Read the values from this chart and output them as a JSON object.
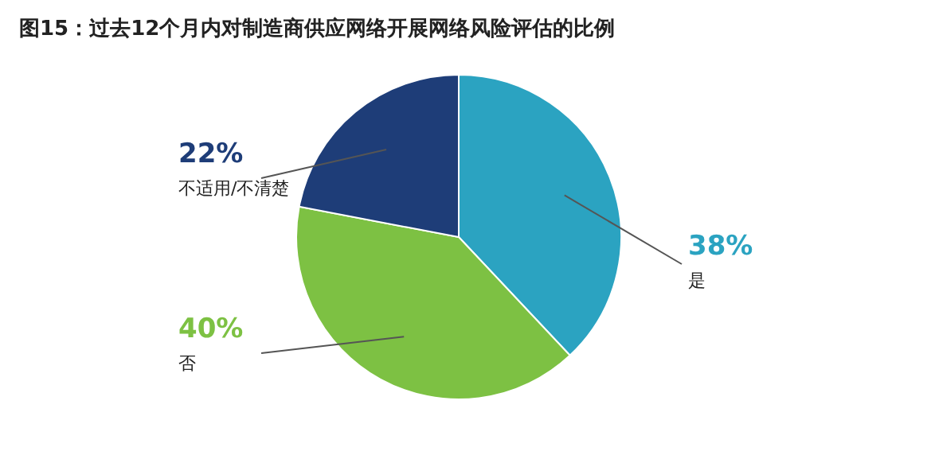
{
  "chart_data": {
    "type": "pie",
    "title": "图15：过去12个月内对制造商供应网络开展网络风险评估的比例",
    "categories": [
      "是",
      "否",
      "不适用/不清楚"
    ],
    "values": [
      38,
      40,
      22
    ],
    "value_labels": [
      "38%",
      "40%",
      "22%"
    ],
    "colors": [
      "#2ba3c1",
      "#7dc143",
      "#1e3d78"
    ]
  }
}
